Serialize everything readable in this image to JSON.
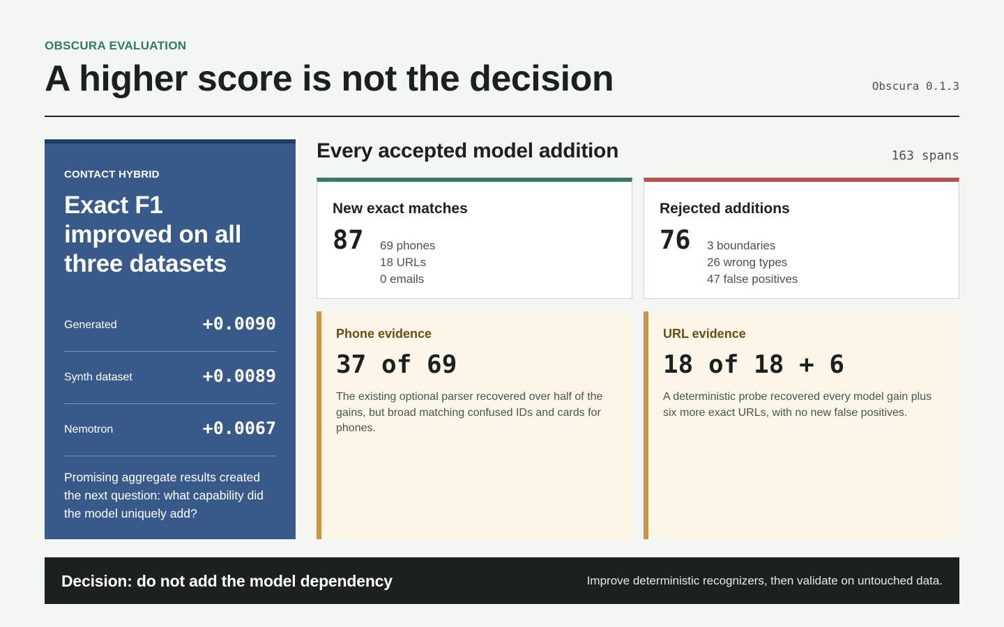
{
  "header": {
    "eyebrow": "OBSCURA EVALUATION",
    "title": "A higher score is not the decision",
    "version": "Obscura 0.1.3"
  },
  "summary": {
    "eyebrow": "CONTACT HYBRID",
    "headline": "Exact F1 improved on all three datasets",
    "metrics": [
      {
        "label": "Generated",
        "value": "+0.0090"
      },
      {
        "label": "Synth dataset",
        "value": "+0.0089"
      },
      {
        "label": "Nemotron",
        "value": "+0.0067"
      }
    ],
    "note": "Promising aggregate results created the next question: what capability did the model uniquely add?"
  },
  "additions": {
    "title": "Every accepted model addition",
    "count": "163 spans",
    "matches": {
      "title": "New exact matches",
      "total": "87",
      "breakdown": [
        "69 phones",
        "18 URLs",
        "0 emails"
      ],
      "accent": "#3c7866"
    },
    "rejected": {
      "title": "Rejected additions",
      "total": "76",
      "breakdown": [
        "3 boundaries",
        "26 wrong types",
        "47 false positives"
      ],
      "accent": "#b5524b"
    },
    "evidence": [
      {
        "title": "Phone evidence",
        "figure": "37 of 69",
        "description": "The existing optional parser recovered over half of the gains, but broad matching confused IDs and cards for phones."
      },
      {
        "title": "URL evidence",
        "figure": "18 of 18 + 6",
        "description": "A deterministic probe recovered every model gain plus six more exact URLs, with no new false positives."
      }
    ]
  },
  "decision": {
    "title": "Decision: do not add the model dependency",
    "note": "Improve deterministic recognizers, then validate on untouched data."
  },
  "colors": {
    "panel_blue": "#375a8a",
    "accent_green": "#2e7a66",
    "evidence_gold": "#c9953e",
    "decision_bg": "#1b211e"
  }
}
